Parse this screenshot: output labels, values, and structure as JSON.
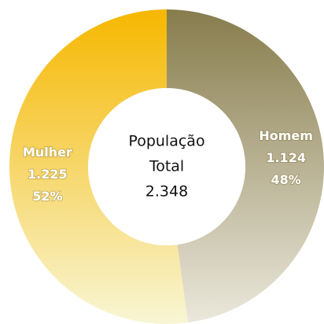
{
  "chart_data": {
    "type": "pie",
    "categories": [
      "Homem",
      "Mulher"
    ],
    "values": [
      1124,
      1225
    ],
    "value_labels": [
      "1.124",
      "1.225"
    ],
    "percent_labels": [
      "48%",
      "52%"
    ],
    "colors": [
      "#877c4c",
      "#f6b700"
    ],
    "gradient_end_colors": [
      "#ebe8dc",
      "#f8f6d4"
    ],
    "center_text": [
      "População",
      "Total",
      "2.348"
    ]
  }
}
